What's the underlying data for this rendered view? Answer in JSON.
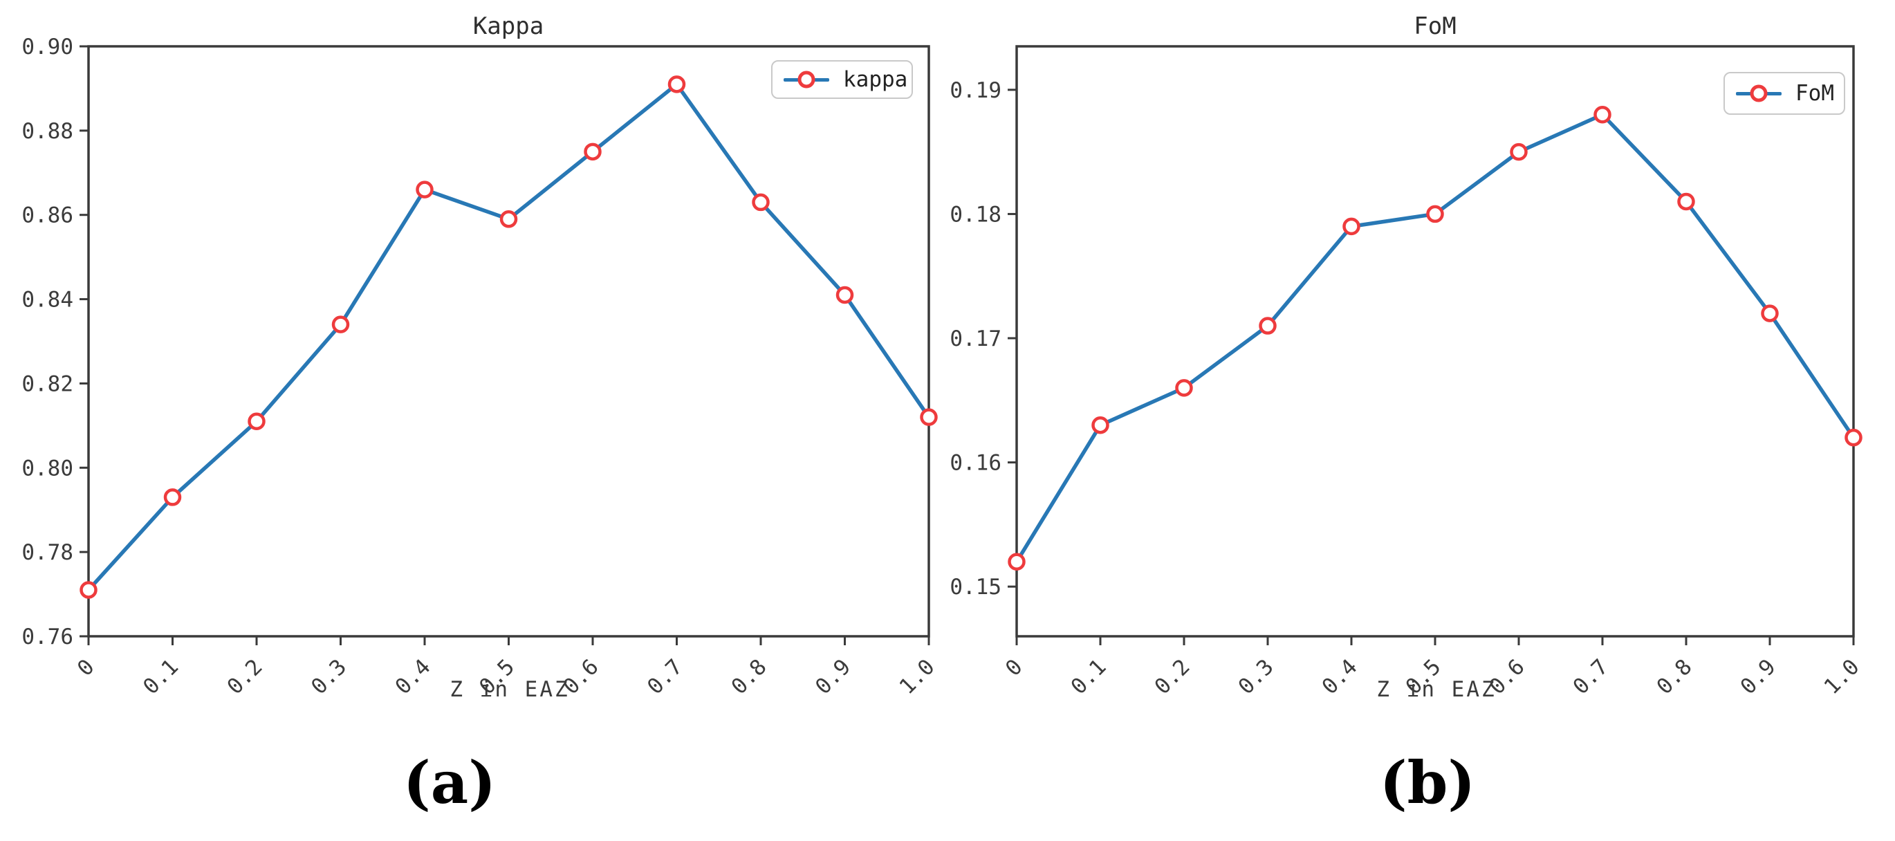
{
  "captions": {
    "a": "(a)",
    "b": "(b)"
  },
  "colors": {
    "line": "#2878b5",
    "marker": "#ee3b3d",
    "axis": "#3a3a3a",
    "tick_text": "#3b3b3b",
    "legend_border": "#c9c9c9"
  },
  "chart_data": [
    {
      "type": "line",
      "title": "Kappa",
      "xlabel": "Z in EAZ",
      "ylabel": "",
      "legend_label": "kappa",
      "legend_position": "upper right",
      "x": [
        0,
        0.1,
        0.2,
        0.3,
        0.4,
        0.5,
        0.6,
        0.7,
        0.8,
        0.9,
        1.0
      ],
      "x_tick_labels": [
        "0",
        "0.1",
        "0.2",
        "0.3",
        "0.4",
        "0.5",
        "0.6",
        "0.7",
        "0.8",
        "0.9",
        "1.0"
      ],
      "series": [
        {
          "name": "kappa",
          "values": [
            0.771,
            0.793,
            0.811,
            0.834,
            0.866,
            0.859,
            0.875,
            0.891,
            0.863,
            0.841,
            0.812
          ],
          "color": "#2878b5",
          "marker": "o",
          "marker_color": "#ee3b3d"
        }
      ],
      "xlim": [
        0,
        1.0
      ],
      "ylim": [
        0.76,
        0.9
      ],
      "y_ticks": [
        0.76,
        0.78,
        0.8,
        0.82,
        0.84,
        0.86,
        0.88,
        0.9
      ],
      "y_tick_labels": [
        "0.76",
        "0.78",
        "0.80",
        "0.82",
        "0.84",
        "0.86",
        "0.88",
        "0.90"
      ],
      "grid": false
    },
    {
      "type": "line",
      "title": "FoM",
      "xlabel": "Z in EAZ",
      "ylabel": "",
      "legend_label": "FoM",
      "legend_position": "upper right",
      "x": [
        0,
        0.1,
        0.2,
        0.3,
        0.4,
        0.5,
        0.6,
        0.7,
        0.8,
        0.9,
        1.0
      ],
      "x_tick_labels": [
        "0",
        "0.1",
        "0.2",
        "0.3",
        "0.4",
        "0.5",
        "0.6",
        "0.7",
        "0.8",
        "0.9",
        "1.0"
      ],
      "series": [
        {
          "name": "FoM",
          "values": [
            0.152,
            0.163,
            0.166,
            0.171,
            0.179,
            0.18,
            0.185,
            0.188,
            0.181,
            0.172,
            0.162
          ],
          "color": "#2878b5",
          "marker": "o",
          "marker_color": "#ee3b3d"
        }
      ],
      "xlim": [
        0,
        1.0
      ],
      "ylim": [
        0.146,
        0.1935
      ],
      "y_ticks": [
        0.15,
        0.16,
        0.17,
        0.18,
        0.19
      ],
      "y_tick_labels": [
        "0.15",
        "0.16",
        "0.17",
        "0.18",
        "0.19"
      ],
      "grid": false
    }
  ]
}
